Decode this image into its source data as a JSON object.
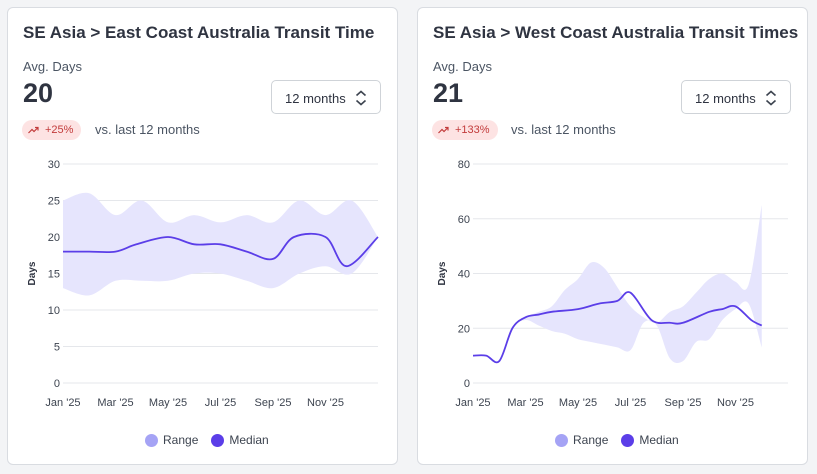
{
  "charts": [
    {
      "title": "SE Asia > East Coast Australia Transit Time",
      "metric_label": "Avg. Days",
      "metric_value": "20",
      "period_select": "12 months",
      "change_badge": "+25%",
      "comparison_text": "vs. last 12 months",
      "ylabel": "Days",
      "legend": {
        "range": "Range",
        "median": "Median"
      }
    },
    {
      "title": "SE Asia > West Coast Australia Transit Times",
      "metric_label": "Avg. Days",
      "metric_value": "21",
      "period_select": "12 months",
      "change_badge": "+133%",
      "comparison_text": "vs. last 12 months",
      "ylabel": "Days",
      "legend": {
        "range": "Range",
        "median": "Median"
      }
    }
  ],
  "colors": {
    "median": "#5b3ee8",
    "range_fill": "#e6e5fd",
    "range_legend": "#a5a3f5",
    "badge_bg": "#fde3e3",
    "badge_text": "#c23b3b",
    "grid": "#e5e7eb"
  },
  "icons": {
    "trend": "trend-up-icon",
    "select": "chevron-up-down-icon"
  },
  "chart_data": [
    {
      "type": "area",
      "title": "SE Asia > East Coast Australia Transit Time",
      "xlabel": "",
      "ylabel": "Days",
      "ylim": [
        0,
        30
      ],
      "yticks": [
        0,
        5,
        10,
        15,
        20,
        25,
        30
      ],
      "xlim": [
        0,
        12
      ],
      "xticks": [
        {
          "x": 0,
          "label": "Jan '25"
        },
        {
          "x": 2,
          "label": "Mar '25"
        },
        {
          "x": 4,
          "label": "May '25"
        },
        {
          "x": 6,
          "label": "Jul '25"
        },
        {
          "x": 8,
          "label": "Sep '25"
        },
        {
          "x": 10,
          "label": "Nov '25"
        }
      ],
      "grid": true,
      "legend_position": "bottom",
      "series": [
        {
          "name": "Median",
          "x": [
            0,
            1,
            2,
            2.8,
            4,
            5,
            6,
            7,
            8,
            8.8,
            10,
            10.8,
            12
          ],
          "values": [
            18,
            18,
            18,
            19,
            20,
            19,
            19,
            18,
            17,
            20,
            20,
            16,
            20
          ]
        }
      ],
      "range": {
        "name": "Range",
        "x": [
          0,
          1,
          2,
          3,
          4,
          5,
          6,
          7,
          8,
          9,
          10,
          11,
          12
        ],
        "low": [
          13,
          12,
          14,
          14,
          14,
          15,
          15,
          14,
          13,
          15,
          16,
          15,
          20
        ],
        "high": [
          25,
          26,
          23,
          25,
          22,
          23,
          22,
          23,
          22,
          25,
          23,
          25,
          20
        ]
      }
    },
    {
      "type": "area",
      "title": "SE Asia > West Coast Australia Transit Times",
      "xlabel": "",
      "ylabel": "Days",
      "ylim": [
        0,
        80
      ],
      "yticks": [
        0,
        20,
        40,
        60,
        80
      ],
      "xlim": [
        0,
        12
      ],
      "xticks": [
        {
          "x": 0,
          "label": "Jan '25"
        },
        {
          "x": 2,
          "label": "Mar '25"
        },
        {
          "x": 4,
          "label": "May '25"
        },
        {
          "x": 6,
          "label": "Jul '25"
        },
        {
          "x": 8,
          "label": "Sep '25"
        },
        {
          "x": 10,
          "label": "Nov '25"
        }
      ],
      "grid": true,
      "legend_position": "bottom",
      "series": [
        {
          "name": "Median",
          "x": [
            0,
            0.5,
            1,
            1.5,
            2,
            2.5,
            3,
            4,
            4.8,
            5.5,
            6,
            6.8,
            7.5,
            8,
            9,
            9.5,
            10,
            10.6,
            11
          ],
          "values": [
            10,
            10,
            8,
            20,
            24,
            25,
            26,
            27,
            29,
            30,
            33,
            23,
            22,
            22,
            26,
            27,
            28,
            23,
            21
          ]
        }
      ],
      "range": {
        "name": "Range",
        "x": [
          0,
          0.5,
          1,
          1.5,
          2,
          2.5,
          3,
          3.5,
          4,
          4.5,
          5,
          5.5,
          6,
          6.5,
          7,
          7.5,
          8,
          8.5,
          9,
          9.5,
          10,
          10.5,
          11
        ],
        "low": [
          10,
          10,
          8,
          20,
          23,
          21,
          19,
          18,
          16,
          15,
          14,
          13,
          12,
          22,
          21,
          9,
          8,
          15,
          16,
          23,
          27,
          29,
          13
        ],
        "high": [
          10,
          10,
          8,
          20,
          24,
          26,
          28,
          34,
          38,
          44,
          42,
          35,
          28,
          24,
          22,
          26,
          28,
          33,
          38,
          40,
          37,
          36,
          65
        ]
      }
    }
  ]
}
